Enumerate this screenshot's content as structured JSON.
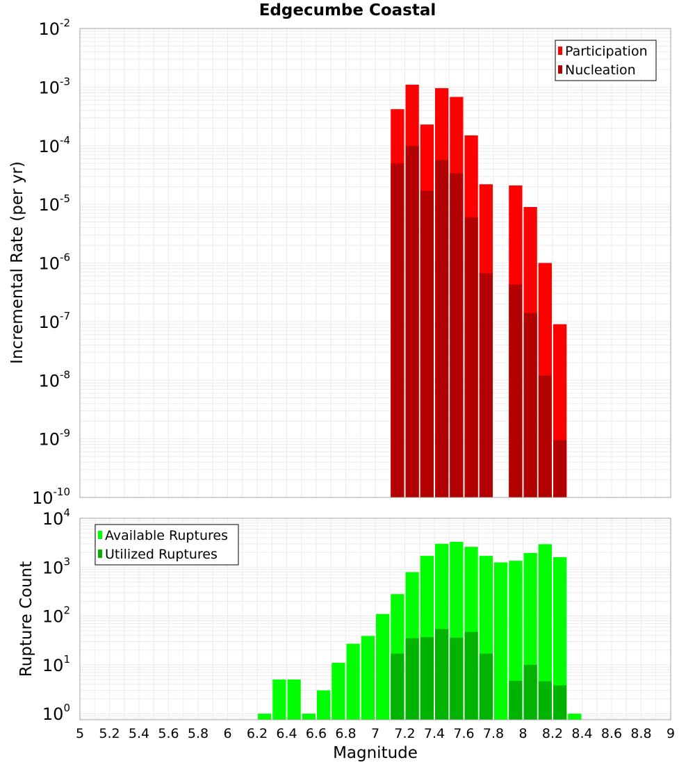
{
  "chart_data": [
    {
      "type": "bar",
      "title": "Edgecumbe Coastal",
      "xlabel": "",
      "ylabel": "Incremental Rate (per yr)",
      "yscale": "log",
      "ylim": [
        1e-10,
        0.01
      ],
      "xlim": [
        5,
        9
      ],
      "ytick_exponents": [
        "-10",
        "-9",
        "-8",
        "-7",
        "-6",
        "-5",
        "-4",
        "-3",
        "-2"
      ],
      "grid": true,
      "legend_position": "top-right",
      "x": [
        7.15,
        7.25,
        7.35,
        7.45,
        7.55,
        7.65,
        7.75,
        7.95,
        8.05,
        8.15,
        8.25
      ],
      "series": [
        {
          "name": "Participation",
          "color": "#ff0000",
          "values": [
            0.00042,
            0.0011,
            0.00023,
            0.00096,
            0.00068,
            0.00015,
            2.2e-05,
            2.1e-05,
            9e-06,
            1e-06,
            9e-08
          ]
        },
        {
          "name": "Nucleation",
          "color": "#b30000",
          "values": [
            5e-05,
            0.0001,
            1.7e-05,
            5.7e-05,
            3.4e-05,
            6e-06,
            6.7e-07,
            4.3e-07,
            1.4e-07,
            1.2e-08,
            9.5e-10
          ]
        }
      ]
    },
    {
      "type": "bar",
      "title": "",
      "xlabel": "Magnitude",
      "ylabel": "Rupture Count",
      "yscale": "log",
      "ylim": [
        0.75,
        10000.0
      ],
      "xlim": [
        5,
        9
      ],
      "ytick_exponents": [
        "0",
        "1",
        "2",
        "3",
        "4"
      ],
      "xticks": [
        "5",
        "5.2",
        "5.4",
        "5.6",
        "5.8",
        "6",
        "6.2",
        "6.4",
        "6.6",
        "6.8",
        "7",
        "7.2",
        "7.4",
        "7.6",
        "7.8",
        "8",
        "8.2",
        "8.4",
        "8.6",
        "8.8",
        "9"
      ],
      "grid": true,
      "legend_position": "top-left",
      "x": [
        6.25,
        6.35,
        6.45,
        6.55,
        6.65,
        6.75,
        6.85,
        6.95,
        7.05,
        7.15,
        7.25,
        7.35,
        7.45,
        7.55,
        7.65,
        7.75,
        7.85,
        7.95,
        8.05,
        8.15,
        8.25,
        8.35
      ],
      "series": [
        {
          "name": "Available Ruptures",
          "color": "#00ff00",
          "values": [
            1,
            5,
            5,
            1,
            3,
            11,
            27,
            39,
            110,
            280,
            790,
            1700,
            3000,
            3300,
            2600,
            1700,
            1250,
            1350,
            1950,
            2950,
            1600,
            1
          ]
        },
        {
          "name": "Utilized Ruptures",
          "color": "#00b300",
          "values": [
            null,
            null,
            null,
            null,
            null,
            null,
            null,
            null,
            null,
            17,
            35,
            37,
            54,
            36,
            47,
            17,
            null,
            4.7,
            10,
            4.6,
            3.8,
            null
          ]
        }
      ]
    }
  ]
}
